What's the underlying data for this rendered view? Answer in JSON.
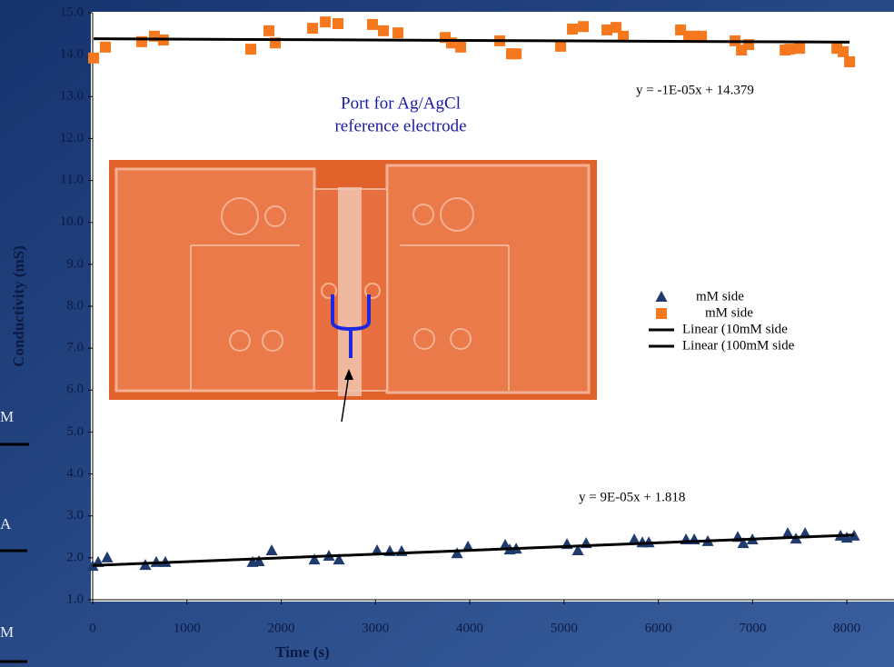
{
  "chart_data": {
    "type": "scatter",
    "xlabel": "Time (s)",
    "ylabel": "Conductivity (mS)",
    "xlim": [
      0,
      8500
    ],
    "ylim": [
      1,
      15
    ],
    "xticks": [
      0,
      1000,
      2000,
      3000,
      4000,
      5000,
      6000,
      7000,
      8000
    ],
    "yticks": [
      {
        "value": 1,
        "label": "1.0"
      },
      {
        "value": 2,
        "label": "2.0"
      },
      {
        "value": 3,
        "label": "3.0"
      },
      {
        "value": 4,
        "label": "4.0"
      },
      {
        "value": 5,
        "label": "5.0"
      },
      {
        "value": 6,
        "label": "6.0"
      },
      {
        "value": 7,
        "label": "7.0"
      },
      {
        "value": 8,
        "label": "8.0"
      },
      {
        "value": 9,
        "label": "9.0"
      },
      {
        "value": 10,
        "label": "10.0"
      },
      {
        "value": 11,
        "label": "11.0"
      },
      {
        "value": 12,
        "label": "12.0"
      },
      {
        "value": 13,
        "label": "13.0"
      },
      {
        "value": 14,
        "label": "14.0"
      },
      {
        "value": 15,
        "label": "15.0"
      }
    ],
    "series": [
      {
        "name": "mM side",
        "color": "#1f3b6e",
        "marker": "triangle",
        "x": [
          0,
          58,
          154,
          559,
          675,
          771,
          1696,
          1764,
          1899,
          2352,
          2506,
          2612,
          3017,
          3152,
          3277,
          3865,
          3981,
          4376,
          4424,
          4492,
          5031,
          5147,
          5234,
          5745,
          5831,
          5899,
          6294,
          6381,
          6525,
          6843,
          6901,
          6998,
          7373,
          7460,
          7557,
          7933,
          8000,
          8077
        ],
        "values": [
          1.8,
          1.89,
          2.0,
          1.82,
          1.89,
          1.89,
          1.89,
          1.91,
          2.17,
          1.95,
          2.04,
          1.95,
          2.17,
          2.15,
          2.15,
          2.1,
          2.26,
          2.3,
          2.19,
          2.21,
          2.32,
          2.17,
          2.34,
          2.43,
          2.36,
          2.36,
          2.43,
          2.43,
          2.39,
          2.49,
          2.34,
          2.43,
          2.58,
          2.45,
          2.58,
          2.52,
          2.47,
          2.52
        ]
      },
      {
        "name": "mM side",
        "color": "#f5781e",
        "marker": "square",
        "x": [
          10,
          135,
          520,
          655,
          750,
          1677,
          1870,
          1937,
          2333,
          2468,
          2602,
          2968,
          3084,
          3239,
          3740,
          3807,
          3904,
          4318,
          4443,
          4492,
          4964,
          5089,
          5205,
          5455,
          5552,
          5629,
          6236,
          6323,
          6390,
          6458,
          6814,
          6882,
          6959,
          7345,
          7393,
          7499,
          7894,
          7961,
          8029
        ],
        "values": [
          13.92,
          14.18,
          14.31,
          14.44,
          14.35,
          14.13,
          14.57,
          14.28,
          14.63,
          14.78,
          14.74,
          14.72,
          14.57,
          14.52,
          14.41,
          14.28,
          14.18,
          14.33,
          14.02,
          14.02,
          14.2,
          14.61,
          14.67,
          14.59,
          14.65,
          14.44,
          14.59,
          14.44,
          14.44,
          14.44,
          14.33,
          14.11,
          14.24,
          14.11,
          14.13,
          14.15,
          14.15,
          14.07,
          13.83
        ]
      }
    ],
    "trendlines": [
      {
        "name": "Linear (10mM side",
        "color": "#000000",
        "series": 0,
        "slope": 9e-05,
        "intercept": 1.818,
        "equation": "y = 9E-05x + 1.818"
      },
      {
        "name": "Linear (100mM side",
        "color": "#000000",
        "series": 1,
        "slope": -1e-05,
        "intercept": 14.379,
        "equation": "y = -1E-05x + 14.379"
      }
    ],
    "annotation": [
      "Port for Ag/AgCl",
      "reference electrode"
    ],
    "background_fragments": [
      "M",
      "A",
      "M"
    ]
  }
}
